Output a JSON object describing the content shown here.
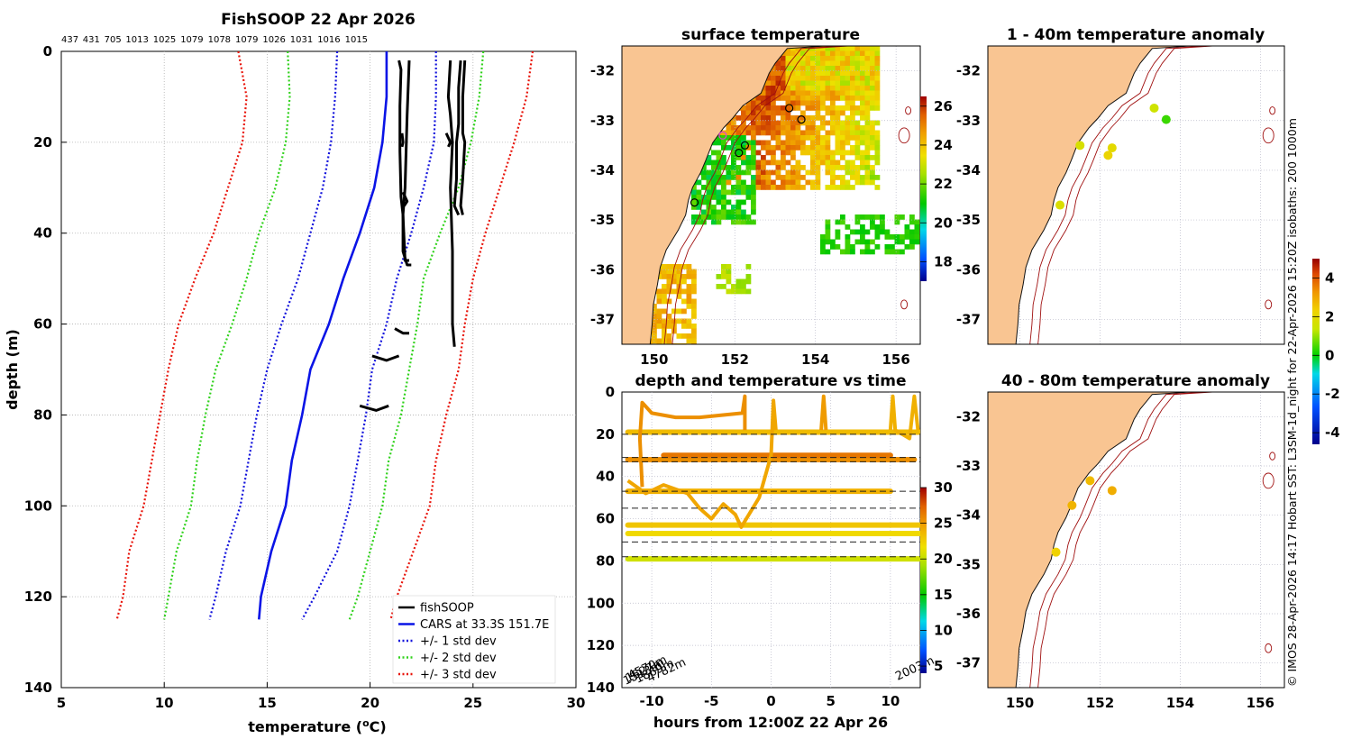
{
  "chart_data": [
    {
      "type": "line",
      "panel": "profile",
      "title": "FishSOOP 22 Apr 2026",
      "top_labels": [
        "437",
        "431",
        "705",
        "1013",
        "1025",
        "1079",
        "1078",
        "1079",
        "1026",
        "1031",
        "1016",
        "1015"
      ],
      "xlabel": "temperature (",
      "xlabel_unit": "o",
      "xlabel_end": "C)",
      "ylabel": "depth (m)",
      "xlim": [
        5,
        30
      ],
      "ylim": [
        0,
        140
      ],
      "x_ticks": [
        5,
        10,
        15,
        20,
        25,
        30
      ],
      "y_ticks": [
        0,
        20,
        40,
        60,
        80,
        100,
        120,
        140
      ],
      "legend": [
        "fishSOOP",
        "CARS at 33.3S 151.7E",
        "+/- 1 std dev",
        "+/- 2 std dev",
        "+/- 3 std dev"
      ],
      "cars_mean": [
        [
          20.8,
          0
        ],
        [
          20.8,
          10
        ],
        [
          20.6,
          20
        ],
        [
          20.2,
          30
        ],
        [
          19.5,
          40
        ],
        [
          18.7,
          50
        ],
        [
          18.0,
          60
        ],
        [
          17.1,
          70
        ],
        [
          16.7,
          80
        ],
        [
          16.2,
          90
        ],
        [
          15.9,
          100
        ],
        [
          15.2,
          110
        ],
        [
          14.7,
          120
        ],
        [
          14.6,
          125
        ]
      ],
      "std1_minus": [
        [
          18.4,
          0
        ],
        [
          18.3,
          10
        ],
        [
          18.1,
          20
        ],
        [
          17.7,
          30
        ],
        [
          17.1,
          40
        ],
        [
          16.5,
          50
        ],
        [
          15.7,
          60
        ],
        [
          15.0,
          70
        ],
        [
          14.5,
          80
        ],
        [
          14.1,
          90
        ],
        [
          13.7,
          100
        ],
        [
          13.0,
          110
        ],
        [
          12.5,
          120
        ],
        [
          12.2,
          125
        ]
      ],
      "std1_plus": [
        [
          23.2,
          0
        ],
        [
          23.2,
          10
        ],
        [
          23.1,
          20
        ],
        [
          22.6,
          30
        ],
        [
          22.0,
          40
        ],
        [
          21.3,
          50
        ],
        [
          20.8,
          60
        ],
        [
          20.1,
          70
        ],
        [
          19.8,
          80
        ],
        [
          19.4,
          90
        ],
        [
          19.0,
          100
        ],
        [
          18.4,
          110
        ],
        [
          17.3,
          120
        ],
        [
          16.7,
          125
        ]
      ],
      "std2_minus": [
        [
          16.0,
          0
        ],
        [
          16.1,
          10
        ],
        [
          15.9,
          20
        ],
        [
          15.4,
          30
        ],
        [
          14.6,
          40
        ],
        [
          14.0,
          50
        ],
        [
          13.3,
          60
        ],
        [
          12.5,
          70
        ],
        [
          12.0,
          80
        ],
        [
          11.6,
          90
        ],
        [
          11.3,
          100
        ],
        [
          10.6,
          110
        ],
        [
          10.2,
          120
        ],
        [
          10.0,
          125
        ]
      ],
      "std2_plus": [
        [
          25.5,
          0
        ],
        [
          25.3,
          10
        ],
        [
          24.9,
          20
        ],
        [
          24.3,
          30
        ],
        [
          23.4,
          40
        ],
        [
          22.6,
          50
        ],
        [
          22.3,
          60
        ],
        [
          21.9,
          70
        ],
        [
          21.5,
          80
        ],
        [
          20.9,
          90
        ],
        [
          20.6,
          100
        ],
        [
          20.0,
          110
        ],
        [
          19.4,
          120
        ],
        [
          19.0,
          125
        ]
      ],
      "std3_minus": [
        [
          13.6,
          0
        ],
        [
          14.0,
          10
        ],
        [
          13.8,
          20
        ],
        [
          13.1,
          30
        ],
        [
          12.4,
          40
        ],
        [
          11.5,
          50
        ],
        [
          10.7,
          60
        ],
        [
          10.2,
          70
        ],
        [
          9.8,
          80
        ],
        [
          9.4,
          90
        ],
        [
          9.0,
          100
        ],
        [
          8.3,
          110
        ],
        [
          8.0,
          120
        ],
        [
          7.7,
          125
        ]
      ],
      "std3_plus": [
        [
          27.9,
          0
        ],
        [
          27.6,
          10
        ],
        [
          27.0,
          20
        ],
        [
          26.3,
          30
        ],
        [
          25.6,
          40
        ],
        [
          25.0,
          50
        ],
        [
          24.6,
          60
        ],
        [
          24.3,
          70
        ],
        [
          23.7,
          80
        ],
        [
          23.2,
          90
        ],
        [
          22.9,
          100
        ],
        [
          22.1,
          110
        ],
        [
          21.3,
          120
        ],
        [
          21.0,
          125
        ]
      ],
      "fishsoop_tracks": [
        [
          [
            21.4,
            2
          ],
          [
            21.5,
            4
          ],
          [
            21.45,
            12
          ],
          [
            21.45,
            22
          ],
          [
            21.5,
            32
          ],
          [
            21.6,
            36
          ],
          [
            21.7,
            46
          ],
          [
            21.9,
            46
          ]
        ],
        [
          [
            21.9,
            2
          ],
          [
            21.8,
            14
          ],
          [
            21.7,
            30
          ],
          [
            21.6,
            36
          ],
          [
            21.6,
            44
          ],
          [
            21.8,
            47
          ],
          [
            22.0,
            47
          ]
        ],
        [
          [
            21.55,
            18
          ],
          [
            21.6,
            20
          ],
          [
            21.55,
            21
          ]
        ],
        [
          [
            21.6,
            31
          ],
          [
            21.8,
            33
          ],
          [
            21.65,
            34
          ]
        ],
        [
          [
            23.9,
            2
          ],
          [
            23.8,
            10
          ],
          [
            23.9,
            14
          ],
          [
            24.0,
            20
          ],
          [
            23.9,
            30
          ],
          [
            24.0,
            44
          ],
          [
            24.0,
            60
          ],
          [
            24.1,
            65
          ]
        ],
        [
          [
            24.4,
            2
          ],
          [
            24.3,
            8
          ],
          [
            24.3,
            16
          ],
          [
            24.2,
            20
          ],
          [
            24.2,
            28
          ],
          [
            24.1,
            34
          ],
          [
            24.3,
            36
          ]
        ],
        [
          [
            24.6,
            2
          ],
          [
            24.5,
            10
          ],
          [
            24.5,
            18
          ],
          [
            24.6,
            20
          ],
          [
            24.5,
            28
          ],
          [
            24.4,
            34
          ],
          [
            24.5,
            36
          ]
        ],
        [
          [
            23.7,
            18
          ],
          [
            23.9,
            20
          ],
          [
            23.8,
            21
          ]
        ],
        [
          [
            21.2,
            61
          ],
          [
            21.6,
            62
          ],
          [
            21.9,
            62
          ]
        ],
        [
          [
            20.1,
            67
          ],
          [
            20.8,
            68
          ],
          [
            21.4,
            67
          ]
        ],
        [
          [
            19.5,
            78
          ],
          [
            20.3,
            79
          ],
          [
            20.9,
            78
          ]
        ]
      ]
    },
    {
      "type": "heatmap",
      "panel": "map",
      "title": "surface temperature",
      "x_ticks": [
        "150",
        "152",
        "154",
        "156"
      ],
      "y_ticks": [
        "-32",
        "-33",
        "-34",
        "-35",
        "-36",
        "-37"
      ],
      "xlim": [
        149.2,
        156.6
      ],
      "ylim": [
        -37.5,
        -31.5
      ],
      "colorbar_ticks": [
        "26",
        "24",
        "22",
        "20",
        "18"
      ],
      "colorbar_range": [
        17,
        26.5
      ],
      "stations": [
        [
          151.0,
          -34.65
        ],
        [
          151.7,
          -33.3
        ],
        [
          152.1,
          -33.65
        ],
        [
          152.25,
          -33.5
        ],
        [
          153.35,
          -32.75
        ],
        [
          153.65,
          -32.98
        ]
      ]
    },
    {
      "type": "scatter",
      "panel": "time",
      "title": "depth and temperature vs time",
      "xlabel": "hours from 12:00Z 22 Apr 26",
      "x_ticks": [
        "-10",
        "-5",
        "0",
        "5",
        "10"
      ],
      "y_ticks": [
        "0",
        "20",
        "40",
        "60",
        "80",
        "100",
        "120",
        "140"
      ],
      "xlim": [
        -12.5,
        12.5
      ],
      "ylim": [
        0,
        140
      ],
      "colorbar_ticks": [
        "30",
        "25",
        "20",
        "15",
        "10",
        "5"
      ],
      "colorbar_range": [
        4,
        30
      ],
      "reference_depths": [
        20,
        31,
        33,
        47,
        55,
        71,
        78
      ],
      "bottom_labels": [
        "1513m",
        "1527m",
        "4570m",
        "1869m",
        "4782m",
        "2003m"
      ],
      "depth_bands": [
        {
          "depth": 19,
          "from": -12,
          "to": 12.5,
          "temp": 23.5
        },
        {
          "depth": 32,
          "from": -12,
          "to": 12,
          "temp": 25.5
        },
        {
          "depth": 30,
          "from": -9,
          "to": 10,
          "temp": 26.5
        },
        {
          "depth": 47,
          "from": -12,
          "to": 10,
          "temp": 24.0
        },
        {
          "depth": 63,
          "from": -12,
          "to": 12.5,
          "temp": 23.0
        },
        {
          "depth": 67,
          "from": -12,
          "to": 12.5,
          "temp": 22.0
        },
        {
          "depth": 79,
          "from": -12,
          "to": 12.5,
          "temp": 20.5
        }
      ]
    },
    {
      "type": "scatter",
      "panel": "anomaly-shallow",
      "title": "1 - 40m temperature anomaly",
      "x_ticks": [],
      "y_ticks": [
        "-32",
        "-33",
        "-34",
        "-35",
        "-36",
        "-37"
      ],
      "xlim": [
        149.2,
        156.6
      ],
      "ylim": [
        -37.5,
        -31.5
      ],
      "points": [
        [
          151.0,
          -34.7,
          1.8
        ],
        [
          151.5,
          -33.5,
          1.7
        ],
        [
          152.2,
          -33.7,
          2.2
        ],
        [
          152.3,
          -33.55,
          2.0
        ],
        [
          153.35,
          -32.75,
          1.5
        ],
        [
          153.65,
          -32.98,
          0.4
        ]
      ]
    },
    {
      "type": "scatter",
      "panel": "anomaly-deep",
      "title": "40 - 80m temperature anomaly",
      "x_ticks": [
        "150",
        "152",
        "154",
        "156"
      ],
      "y_ticks": [
        "-32",
        "-33",
        "-34",
        "-35",
        "-36",
        "-37"
      ],
      "xlim": [
        149.2,
        156.6
      ],
      "ylim": [
        -37.5,
        -31.5
      ],
      "colorbar_ticks": [
        "4",
        "2",
        "0",
        "-2",
        "-4"
      ],
      "colorbar_range": [
        -4.6,
        5
      ],
      "points": [
        [
          150.9,
          -34.75,
          2.3
        ],
        [
          151.3,
          -33.8,
          2.8
        ],
        [
          151.75,
          -33.3,
          2.7
        ],
        [
          152.3,
          -33.5,
          2.9
        ]
      ]
    }
  ],
  "credit": "© IMOS 28-Apr-2026 14:17 Hobart SST: L3SM-1d_night for 22-Apr-2026 15:20Z isobaths: 200  1000m"
}
